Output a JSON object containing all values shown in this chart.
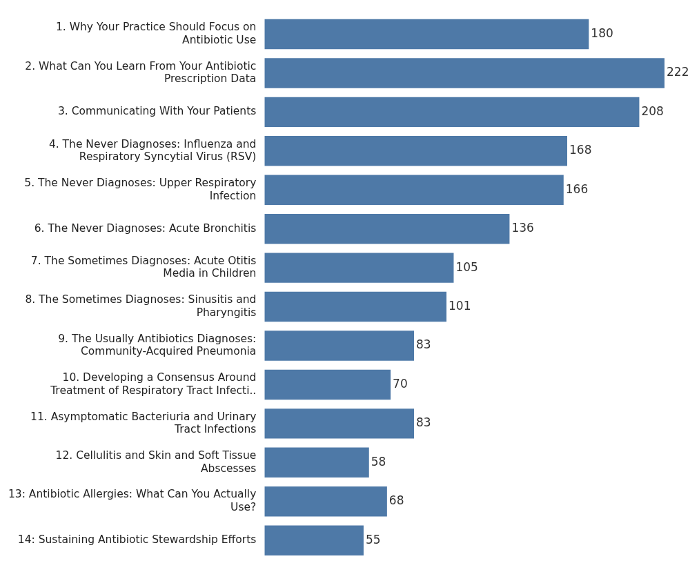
{
  "chart_data": {
    "type": "bar",
    "orientation": "horizontal",
    "color": "#4e79a7",
    "data_labels": true,
    "categories": [
      "1. Why Your Practice Should Focus on Antibiotic Use",
      "2. What Can You Learn From Your Antibiotic Prescription Data",
      "3. Communicating With Your Patients",
      "4. The Never Diagnoses: Influenza and Respiratory Syncytial Virus (RSV)",
      "5. The Never Diagnoses: Upper Respiratory Infection",
      "6. The Never Diagnoses: Acute Bronchitis",
      "7. The Sometimes Diagnoses: Acute Otitis Media in Children",
      "8. The Sometimes Diagnoses: Sinusitis and Pharyngitis",
      "9. The Usually Antibiotics Diagnoses: Community-Acquired Pneumonia",
      "10. Developing a Consensus Around Treatment of Respiratory Tract Infecti..",
      "11. Asymptomatic Bacteriuria and Urinary Tract Infections",
      "12. Cellulitis and Skin and Soft Tissue Abscesses",
      "13: Antibiotic Allergies: What Can You Actually Use?",
      "14: Sustaining Antibiotic Stewardship Efforts"
    ],
    "values": [
      180,
      222,
      208,
      168,
      166,
      136,
      105,
      101,
      83,
      70,
      83,
      58,
      68,
      55
    ]
  }
}
